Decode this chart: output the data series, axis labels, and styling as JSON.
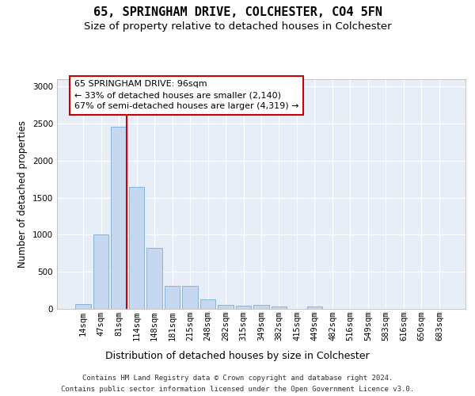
{
  "title_line1": "65, SPRINGHAM DRIVE, COLCHESTER, CO4 5FN",
  "title_line2": "Size of property relative to detached houses in Colchester",
  "xlabel": "Distribution of detached houses by size in Colchester",
  "ylabel": "Number of detached properties",
  "categories": [
    "14sqm",
    "47sqm",
    "81sqm",
    "114sqm",
    "148sqm",
    "181sqm",
    "215sqm",
    "248sqm",
    "282sqm",
    "315sqm",
    "349sqm",
    "382sqm",
    "415sqm",
    "449sqm",
    "482sqm",
    "516sqm",
    "549sqm",
    "583sqm",
    "616sqm",
    "650sqm",
    "683sqm"
  ],
  "values": [
    60,
    1000,
    2460,
    1650,
    820,
    305,
    310,
    125,
    50,
    45,
    50,
    30,
    0,
    30,
    0,
    0,
    0,
    0,
    0,
    0,
    0
  ],
  "bar_color": "#c5d8f0",
  "bar_edge_color": "#7aadd4",
  "highlight_line_color": "#cc0000",
  "annotation_text": "65 SPRINGHAM DRIVE: 96sqm\n← 33% of detached houses are smaller (2,140)\n67% of semi-detached houses are larger (4,319) →",
  "annotation_box_color": "#ffffff",
  "annotation_box_edge": "#cc0000",
  "ylim": [
    0,
    3100
  ],
  "yticks": [
    0,
    500,
    1000,
    1500,
    2000,
    2500,
    3000
  ],
  "footer_line1": "Contains HM Land Registry data © Crown copyright and database right 2024.",
  "footer_line2": "Contains public sector information licensed under the Open Government Licence v3.0.",
  "bg_color": "#e8eef8",
  "grid_color": "#ffffff",
  "title_fontsize": 11,
  "subtitle_fontsize": 9.5,
  "axis_label_fontsize": 8.5,
  "tick_fontsize": 7.5,
  "annotation_fontsize": 8,
  "footer_fontsize": 6.5
}
